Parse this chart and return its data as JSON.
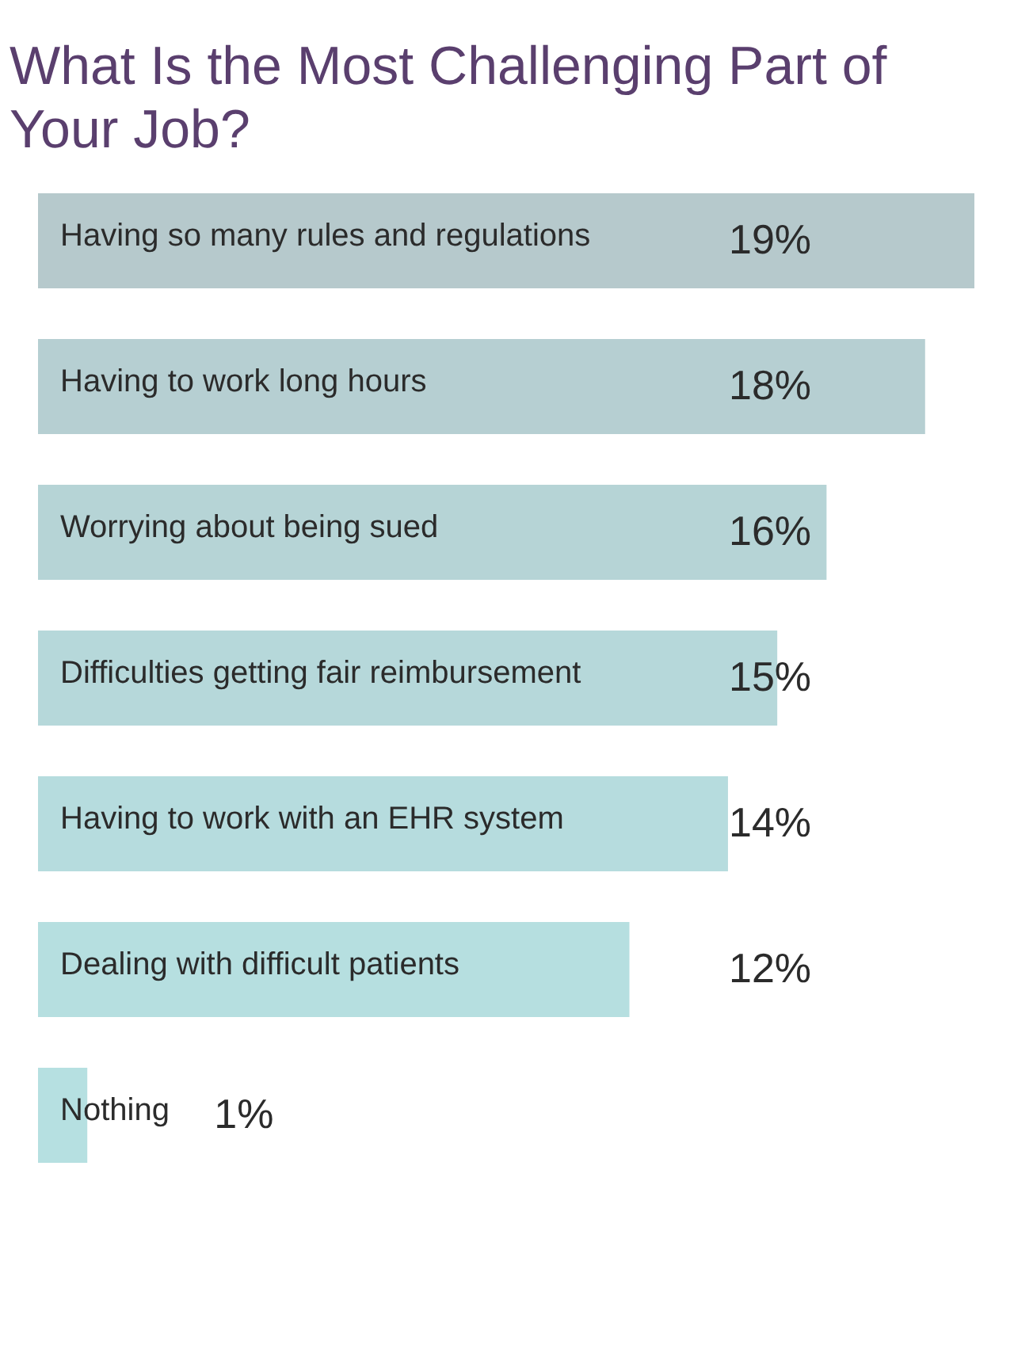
{
  "chart_data": {
    "type": "bar",
    "orientation": "horizontal",
    "title": "What Is the Most Challenging Part of Your Job?",
    "categories": [
      "Having so many rules and regulations",
      "Having to work long hours",
      "Worrying about being sued",
      "Difficulties getting fair reimbursement",
      "Having to work with an EHR system",
      "Dealing with difficult patients",
      "Nothing"
    ],
    "values": [
      19,
      18,
      16,
      15,
      14,
      12,
      1
    ],
    "value_labels": [
      "19%",
      "18%",
      "16%",
      "15%",
      "14%",
      "12%",
      "1%"
    ],
    "colors": [
      "#b6c9cc",
      "#b6cfd2",
      "#b6d4d6",
      "#b6d8da",
      "#b6dcde",
      "#b6dfe0",
      "#b6e0e1"
    ]
  }
}
